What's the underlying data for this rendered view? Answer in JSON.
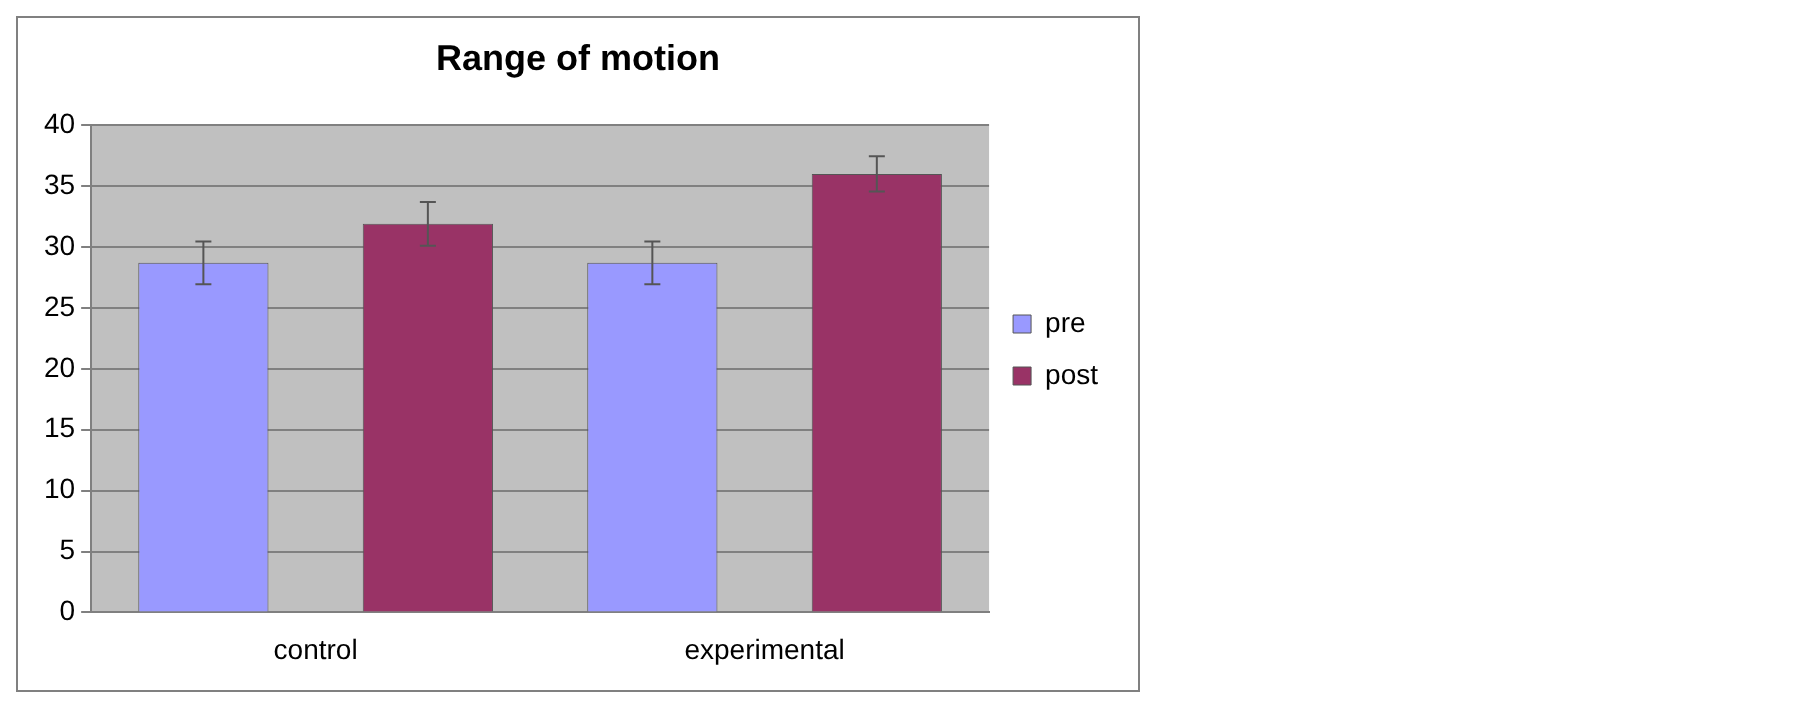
{
  "chart_data": {
    "type": "bar",
    "title": "Range of motion",
    "categories": [
      "control",
      "experimental"
    ],
    "series": [
      {
        "name": "pre",
        "color": "#9999ff",
        "values": [
          28.7,
          28.7
        ],
        "errors": [
          1.75,
          1.75
        ]
      },
      {
        "name": "post",
        "color": "#993366",
        "values": [
          31.9,
          36.0
        ],
        "errors": [
          1.8,
          1.45
        ]
      }
    ],
    "ylim": [
      0,
      40
    ],
    "yticks": [
      0,
      5,
      10,
      15,
      20,
      25,
      30,
      35,
      40
    ],
    "grid": "y",
    "legend": "right"
  }
}
